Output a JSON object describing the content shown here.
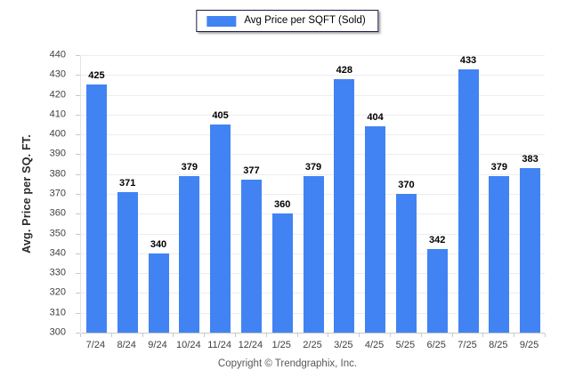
{
  "legend": {
    "label": "Avg Price per SQFT (Sold)"
  },
  "footer": {
    "copyright": "Copyright © Trendgraphix, Inc."
  },
  "colors": {
    "bar": "#4183F3",
    "gridline": "#ededed",
    "axis": "#c9c9c9",
    "tick_label": "#404040",
    "value_label": "#000000"
  },
  "chart_data": {
    "type": "bar",
    "title": "Avg Price per SQFT (Sold)",
    "categories": [
      "7/24",
      "8/24",
      "9/24",
      "10/24",
      "11/24",
      "12/24",
      "1/25",
      "2/25",
      "3/25",
      "4/25",
      "5/25",
      "6/25",
      "7/25",
      "8/25",
      "9/25"
    ],
    "values": [
      425,
      371,
      340,
      379,
      405,
      377,
      360,
      379,
      428,
      404,
      370,
      342,
      433,
      379,
      383
    ],
    "xlabel": "",
    "ylabel": "Avg. Price per SQ. FT.",
    "ylim": [
      300,
      440
    ],
    "ytick_step": 10,
    "grid": true,
    "legend_position": "top-center"
  }
}
